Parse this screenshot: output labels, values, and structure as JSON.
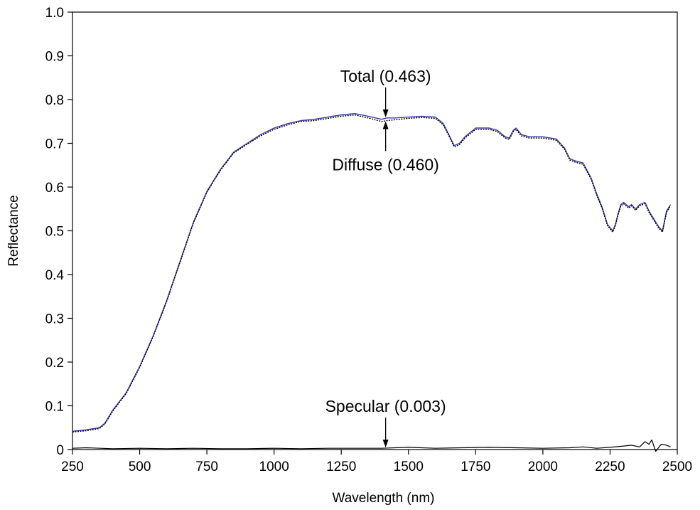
{
  "chart_data": {
    "type": "line",
    "title": "",
    "xlabel": "Wavelength (nm)",
    "ylabel": "Reflectance",
    "xlim": [
      250,
      2500
    ],
    "ylim": [
      0,
      1.0
    ],
    "x_ticks": [
      250,
      500,
      750,
      1000,
      1250,
      1500,
      1750,
      2000,
      2250,
      2500
    ],
    "x_tick_labels": [
      "250",
      "500",
      "750",
      "1000",
      "1250",
      "1500",
      "1750",
      "2000",
      "2250",
      "2500"
    ],
    "y_ticks": [
      0,
      0.1,
      0.2,
      0.3,
      0.4,
      0.5,
      0.6,
      0.7,
      0.8,
      0.9,
      1.0
    ],
    "y_tick_labels": [
      "0",
      "0.1",
      "0.2",
      "0.3",
      "0.4",
      "0.5",
      "0.6",
      "0.7",
      "0.8",
      "0.9",
      "1.0"
    ],
    "grid": false,
    "legend": "none",
    "series": [
      {
        "key": "total",
        "color": "#3a3aa8",
        "x": [
          250,
          300,
          350,
          370,
          400,
          450,
          500,
          550,
          600,
          650,
          700,
          750,
          800,
          850,
          900,
          950,
          1000,
          1050,
          1100,
          1150,
          1200,
          1250,
          1300,
          1350,
          1400,
          1420,
          1450,
          1500,
          1550,
          1600,
          1630,
          1650,
          1670,
          1690,
          1710,
          1730,
          1750,
          1780,
          1800,
          1830,
          1860,
          1875,
          1890,
          1900,
          1920,
          1950,
          2000,
          2050,
          2080,
          2100,
          2120,
          2150,
          2180,
          2200,
          2220,
          2240,
          2260,
          2270,
          2280,
          2290,
          2300,
          2320,
          2330,
          2345,
          2360,
          2380,
          2395,
          2410,
          2430,
          2445,
          2460,
          2475
        ],
        "values": [
          0.042,
          0.045,
          0.05,
          0.06,
          0.09,
          0.13,
          0.19,
          0.26,
          0.34,
          0.43,
          0.52,
          0.59,
          0.64,
          0.68,
          0.7,
          0.72,
          0.735,
          0.745,
          0.752,
          0.755,
          0.76,
          0.765,
          0.768,
          0.762,
          0.755,
          0.758,
          0.758,
          0.76,
          0.762,
          0.76,
          0.745,
          0.72,
          0.695,
          0.7,
          0.715,
          0.725,
          0.735,
          0.735,
          0.735,
          0.73,
          0.715,
          0.712,
          0.73,
          0.735,
          0.72,
          0.715,
          0.715,
          0.71,
          0.69,
          0.665,
          0.66,
          0.655,
          0.62,
          0.585,
          0.555,
          0.515,
          0.5,
          0.515,
          0.54,
          0.56,
          0.565,
          0.555,
          0.56,
          0.55,
          0.56,
          0.565,
          0.545,
          0.53,
          0.51,
          0.5,
          0.545,
          0.56
        ]
      },
      {
        "key": "diffuse",
        "color": "#000000",
        "x": [
          250,
          300,
          350,
          370,
          400,
          450,
          500,
          550,
          600,
          650,
          700,
          750,
          800,
          850,
          900,
          950,
          1000,
          1050,
          1100,
          1150,
          1200,
          1250,
          1300,
          1350,
          1400,
          1420,
          1450,
          1500,
          1550,
          1600,
          1630,
          1650,
          1670,
          1690,
          1710,
          1730,
          1750,
          1780,
          1800,
          1830,
          1860,
          1875,
          1890,
          1900,
          1920,
          1950,
          2000,
          2050,
          2080,
          2100,
          2120,
          2150,
          2180,
          2200,
          2220,
          2240,
          2260,
          2270,
          2280,
          2290,
          2300,
          2320,
          2330,
          2345,
          2360,
          2380,
          2395,
          2410,
          2430,
          2445,
          2460,
          2475
        ],
        "values": [
          0.04,
          0.043,
          0.048,
          0.058,
          0.088,
          0.128,
          0.188,
          0.258,
          0.338,
          0.428,
          0.518,
          0.588,
          0.638,
          0.678,
          0.698,
          0.717,
          0.732,
          0.742,
          0.75,
          0.752,
          0.757,
          0.762,
          0.765,
          0.758,
          0.75,
          0.752,
          0.754,
          0.757,
          0.759,
          0.757,
          0.742,
          0.717,
          0.692,
          0.697,
          0.712,
          0.722,
          0.732,
          0.732,
          0.732,
          0.727,
          0.712,
          0.709,
          0.727,
          0.732,
          0.717,
          0.712,
          0.712,
          0.707,
          0.687,
          0.662,
          0.657,
          0.652,
          0.617,
          0.582,
          0.552,
          0.512,
          0.497,
          0.512,
          0.537,
          0.557,
          0.562,
          0.552,
          0.557,
          0.547,
          0.557,
          0.562,
          0.542,
          0.527,
          0.507,
          0.497,
          0.542,
          0.557
        ]
      },
      {
        "key": "specular",
        "color": "#000000",
        "x": [
          250,
          300,
          400,
          500,
          600,
          700,
          800,
          900,
          1000,
          1100,
          1200,
          1300,
          1400,
          1500,
          1600,
          1700,
          1800,
          1900,
          2000,
          2100,
          2150,
          2200,
          2250,
          2300,
          2330,
          2360,
          2380,
          2395,
          2405,
          2420,
          2440,
          2460,
          2475
        ],
        "values": [
          0.003,
          0.004,
          0.002,
          0.003,
          0.002,
          0.003,
          0.002,
          0.002,
          0.003,
          0.002,
          0.003,
          0.003,
          0.003,
          0.005,
          0.003,
          0.004,
          0.005,
          0.004,
          0.003,
          0.004,
          0.006,
          0.003,
          0.005,
          0.008,
          0.01,
          0.006,
          0.018,
          0.012,
          0.022,
          -0.004,
          0.012,
          0.01,
          0.006
        ]
      }
    ],
    "annotations": [
      {
        "key": "total",
        "text": "Total (0.463)",
        "x": 1415,
        "y": 0.758,
        "direction": "down"
      },
      {
        "key": "diffuse",
        "text": "Diffuse (0.460)",
        "x": 1415,
        "y": 0.752,
        "direction": "up"
      },
      {
        "key": "specular",
        "text": "Specular (0.003)",
        "x": 1415,
        "y": 0.003,
        "direction": "down"
      }
    ]
  }
}
